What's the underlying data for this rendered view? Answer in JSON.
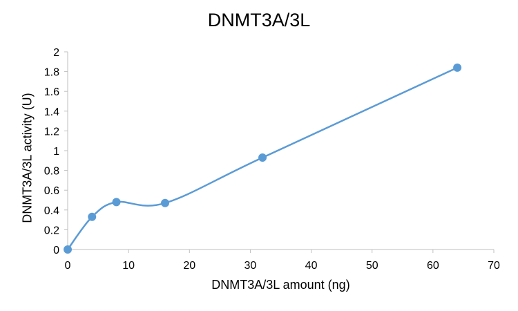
{
  "chart_data": {
    "type": "line",
    "title": "DNMT3A/3L",
    "xlabel": "DNMT3A/3L amount (ng)",
    "ylabel": "DNMT3A/3L activity (U)",
    "xlim": [
      0,
      70
    ],
    "ylim": [
      0,
      2
    ],
    "x_ticks": [
      0,
      10,
      20,
      30,
      40,
      50,
      60,
      70
    ],
    "y_ticks": [
      0,
      0.2,
      0.4,
      0.6,
      0.8,
      1,
      1.2,
      1.4,
      1.6,
      1.8,
      2
    ],
    "x_tick_labels": [
      "0",
      "10",
      "20",
      "30",
      "40",
      "50",
      "60",
      "70"
    ],
    "y_tick_labels": [
      "0",
      "0.2",
      "0.4",
      "0.6",
      "0.8",
      "1",
      "1.2",
      "1.4",
      "1.6",
      "1.8",
      "2"
    ],
    "grid": false,
    "smoothed": true,
    "series": [
      {
        "x": [
          0,
          4,
          8,
          16,
          32,
          64
        ],
        "y": [
          0,
          0.33,
          0.48,
          0.47,
          0.93,
          1.84
        ],
        "color": "#5b9bd5"
      }
    ]
  }
}
